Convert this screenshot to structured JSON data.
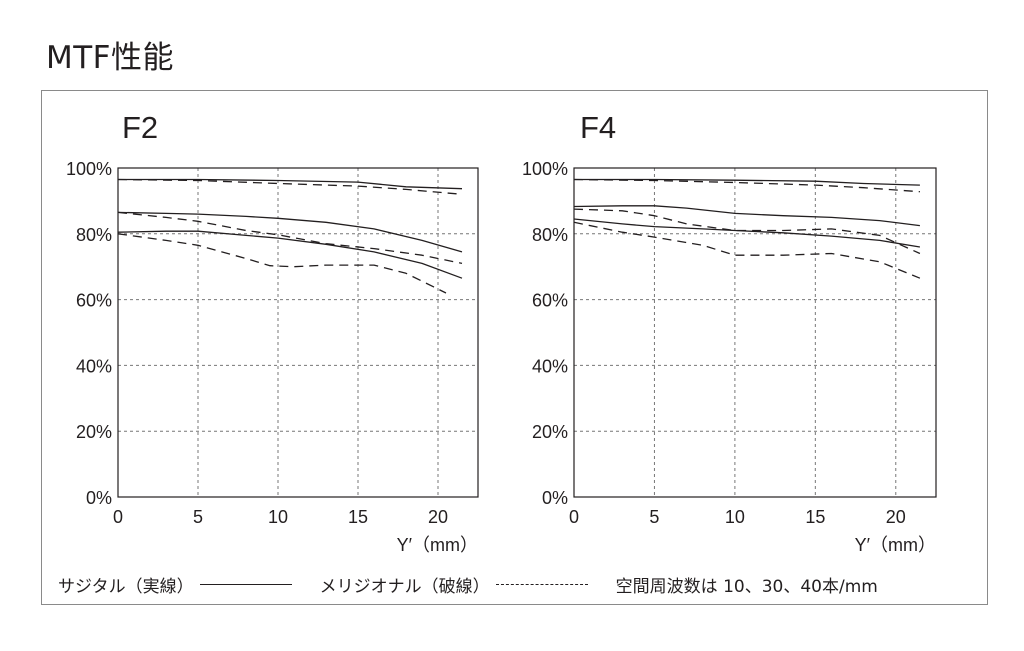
{
  "page_title": "MTF性能",
  "legend": {
    "sagittal": "サジタル（実線）",
    "meridional": "メリジオナル（破線）",
    "frequencies": "空間周波数は 10、30、40本/mm"
  },
  "chart_data": [
    {
      "type": "line",
      "title": "F2",
      "xlabel": "Y′（mm）",
      "xlim": [
        0,
        22.5
      ],
      "ylim": [
        0,
        100
      ],
      "xticks": [
        "0",
        "5",
        "10",
        "15",
        "20"
      ],
      "yticks": [
        "0%",
        "20%",
        "40%",
        "60%",
        "80%",
        "100%"
      ],
      "grid": true,
      "series": [
        {
          "style": "solid",
          "x": [
            0,
            5,
            10,
            15,
            18,
            21.5
          ],
          "values": [
            96.5,
            96.5,
            96.2,
            95.7,
            94.3,
            93.7
          ]
        },
        {
          "style": "dashed",
          "x": [
            0,
            5,
            10,
            15,
            18,
            21.5
          ],
          "values": [
            96.5,
            96.2,
            95.3,
            94.5,
            93.5,
            92.0
          ]
        },
        {
          "style": "solid",
          "x": [
            0,
            3,
            5,
            8,
            10,
            13,
            16,
            19,
            21.5
          ],
          "values": [
            86.5,
            86.2,
            86.0,
            85.3,
            84.7,
            83.5,
            81.5,
            78.0,
            74.5
          ]
        },
        {
          "style": "dashed",
          "x": [
            0,
            3,
            5,
            8,
            10,
            13,
            16,
            19,
            21.5
          ],
          "values": [
            86.5,
            85.0,
            83.8,
            81.0,
            79.7,
            77.0,
            75.5,
            73.5,
            71.0
          ]
        },
        {
          "style": "solid",
          "x": [
            0,
            3,
            5,
            8,
            10,
            13,
            16,
            19,
            21.5
          ],
          "values": [
            80.5,
            80.8,
            80.8,
            79.5,
            78.7,
            76.8,
            74.5,
            71.0,
            66.5
          ]
        },
        {
          "style": "dashed",
          "x": [
            0,
            3,
            5,
            8,
            9.5,
            11,
            13,
            16,
            18,
            20.5
          ],
          "values": [
            80.0,
            78.0,
            76.5,
            72.5,
            70.3,
            70.0,
            70.5,
            70.5,
            68.0,
            62.0
          ]
        }
      ]
    },
    {
      "type": "line",
      "title": "F4",
      "xlabel": "Y′（mm）",
      "xlim": [
        0,
        22.5
      ],
      "ylim": [
        0,
        100
      ],
      "xticks": [
        "0",
        "5",
        "10",
        "15",
        "20"
      ],
      "yticks": [
        "0%",
        "20%",
        "40%",
        "60%",
        "80%",
        "100%"
      ],
      "grid": true,
      "series": [
        {
          "style": "solid",
          "x": [
            0,
            5,
            10,
            15,
            18,
            21.5
          ],
          "values": [
            96.5,
            96.5,
            96.3,
            96.0,
            95.3,
            94.8
          ]
        },
        {
          "style": "dashed",
          "x": [
            0,
            5,
            10,
            15,
            18,
            21.5
          ],
          "values": [
            96.5,
            96.2,
            95.6,
            94.8,
            94.0,
            92.8
          ]
        },
        {
          "style": "solid",
          "x": [
            0,
            3,
            5,
            7,
            10,
            13,
            16,
            19,
            21.5
          ],
          "values": [
            88.3,
            88.5,
            88.5,
            87.8,
            86.2,
            85.5,
            85.0,
            84.0,
            82.5
          ]
        },
        {
          "style": "dashed",
          "x": [
            0,
            3,
            5,
            7,
            10,
            13,
            16,
            19,
            21.5
          ],
          "values": [
            87.5,
            87.0,
            85.5,
            83.0,
            81.0,
            81.0,
            81.5,
            79.5,
            74.0
          ]
        },
        {
          "style": "solid",
          "x": [
            0,
            3,
            5,
            8,
            10,
            13,
            16,
            19,
            21.5
          ],
          "values": [
            84.5,
            83.0,
            82.2,
            81.5,
            81.0,
            80.3,
            79.3,
            78.0,
            76.0
          ]
        },
        {
          "style": "dashed",
          "x": [
            0,
            3,
            5,
            8,
            10,
            13,
            16,
            19,
            21.5
          ],
          "values": [
            83.5,
            80.5,
            79.0,
            76.5,
            73.5,
            73.5,
            74.0,
            71.5,
            66.5
          ]
        }
      ]
    }
  ]
}
